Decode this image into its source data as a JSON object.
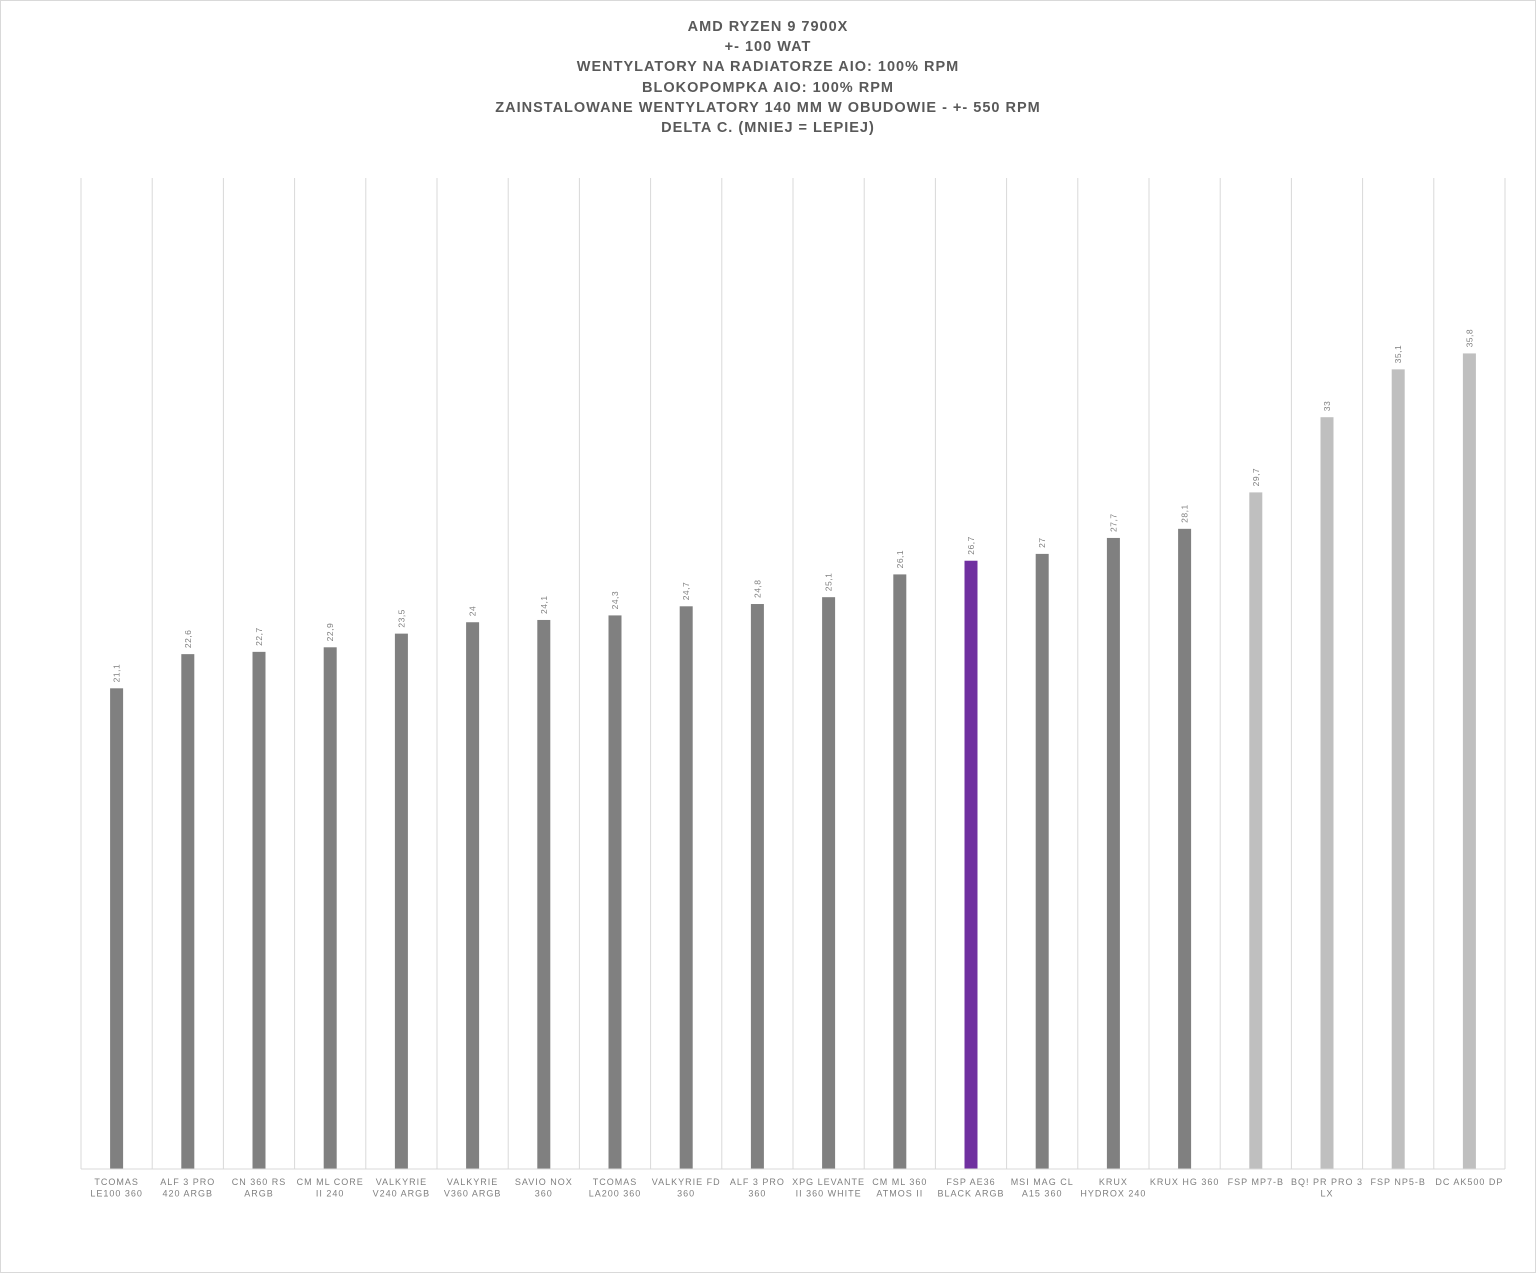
{
  "chart_data": {
    "type": "bar",
    "title_lines": [
      "AMD RYZEN 9 7900X",
      "+- 100 WAT",
      "WENTYLATORY NA RADIATORZE AIO: 100% RPM",
      "BLOKOPOMPKA AIO: 100% RPM",
      "ZAINSTALOWANE WENTYLATORY 140 MM W OBUDOWIE - +- 550 RPM",
      "DELTA C. (MNIEJ = LEPIEJ)"
    ],
    "xlabel": "",
    "ylabel": "",
    "ylim": [
      0,
      43.5
    ],
    "grid": "vertical",
    "categories": [
      [
        "TCOMAS",
        "LE100 360"
      ],
      [
        "ALF 3 PRO",
        "420 ARGB"
      ],
      [
        "CN 360 RS",
        "ARGB"
      ],
      [
        "CM ML CORE",
        "II 240"
      ],
      [
        "VALKYRIE",
        "V240 ARGB"
      ],
      [
        "VALKYRIE",
        "V360 ARGB"
      ],
      [
        "SAVIO NOX",
        "360"
      ],
      [
        "TCOMAS",
        "LA200 360"
      ],
      [
        "VALKYRIE FD",
        "360"
      ],
      [
        "ALF 3 PRO",
        "360"
      ],
      [
        "XPG LEVANTE",
        "II 360 WHITE"
      ],
      [
        "CM ML 360",
        "ATMOS II"
      ],
      [
        "FSP AE36",
        "BLACK ARGB"
      ],
      [
        "MSI MAG CL",
        "A15 360"
      ],
      [
        "KRUX",
        "HYDROX  240"
      ],
      [
        "KRUX HG 360"
      ],
      [
        "FSP MP7-B"
      ],
      [
        "BQ! PR PRO 3",
        "LX"
      ],
      [
        "FSP NP5-B"
      ],
      [
        "DC AK500 DP"
      ]
    ],
    "values": [
      21.1,
      22.6,
      22.7,
      22.9,
      23.5,
      24.0,
      24.1,
      24.3,
      24.7,
      24.8,
      25.1,
      26.1,
      26.7,
      27.0,
      27.7,
      28.1,
      29.7,
      33.0,
      35.1,
      35.8
    ],
    "value_labels": [
      "21,1",
      "22,6",
      "22,7",
      "22,9",
      "23,5",
      "24",
      "24,1",
      "24,3",
      "24,7",
      "24,8",
      "25,1",
      "26,1",
      "26,7",
      "27",
      "27,7",
      "28,1",
      "29,7",
      "33",
      "35,1",
      "35,8"
    ],
    "bar_colors": [
      "#808080",
      "#808080",
      "#808080",
      "#808080",
      "#808080",
      "#808080",
      "#808080",
      "#808080",
      "#808080",
      "#808080",
      "#808080",
      "#808080",
      "#7030a0",
      "#808080",
      "#808080",
      "#808080",
      "#bfbfbf",
      "#bfbfbf",
      "#bfbfbf",
      "#bfbfbf"
    ],
    "colors": {
      "default": "#808080",
      "highlight": "#7030a0",
      "air_cooler": "#bfbfbf",
      "gridline": "#d9d9d9",
      "text": "#595959",
      "label": "#7f7f7f"
    }
  }
}
